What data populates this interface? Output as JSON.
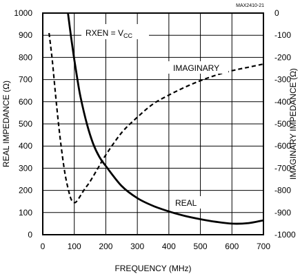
{
  "note": "MAX2410-21",
  "chart_data": {
    "type": "line",
    "xlabel": "FREQUENCY (MHz)",
    "ylabel": "REAL IMPEDANCE (Ω)",
    "y2label": "IMAGINARY IMPEDANCE (Ω)",
    "xlim": [
      0,
      700
    ],
    "ylim": [
      0,
      1000
    ],
    "y2lim": [
      -1000,
      0
    ],
    "x_ticks": [
      "0",
      "100",
      "200",
      "300",
      "400",
      "500",
      "600",
      "700"
    ],
    "y_ticks": [
      "0",
      "100",
      "200",
      "300",
      "400",
      "500",
      "600",
      "700",
      "800",
      "900",
      "1000"
    ],
    "y2_ticks": [
      "-1000",
      "-900",
      "-800",
      "-700",
      "-600",
      "-500",
      "-400",
      "-300",
      "-200",
      "-100",
      "0"
    ],
    "grid": true,
    "condition": {
      "main": "RXEN = V",
      "sub": "CC"
    },
    "series": [
      {
        "name": "REAL",
        "axis": "left",
        "style": "solid",
        "x": [
          80,
          90,
          100,
          110,
          120,
          140,
          160,
          180,
          200,
          250,
          300,
          350,
          400,
          450,
          500,
          550,
          600,
          650,
          700
        ],
        "y": [
          1000,
          890,
          790,
          700,
          620,
          500,
          410,
          350,
          310,
          220,
          165,
          130,
          105,
          85,
          70,
          58,
          50,
          52,
          65
        ]
      },
      {
        "name": "IMAGINARY",
        "axis": "right",
        "style": "dashed",
        "x": [
          20,
          30,
          40,
          50,
          60,
          70,
          80,
          90,
          100,
          110,
          130,
          150,
          175,
          200,
          250,
          300,
          350,
          400,
          450,
          500,
          550,
          600,
          650,
          700
        ],
        "y": [
          -90,
          -210,
          -360,
          -500,
          -620,
          -720,
          -790,
          -840,
          -855,
          -845,
          -800,
          -760,
          -700,
          -640,
          -540,
          -470,
          -410,
          -370,
          -335,
          -305,
          -280,
          -260,
          -245,
          -230
        ]
      }
    ]
  }
}
